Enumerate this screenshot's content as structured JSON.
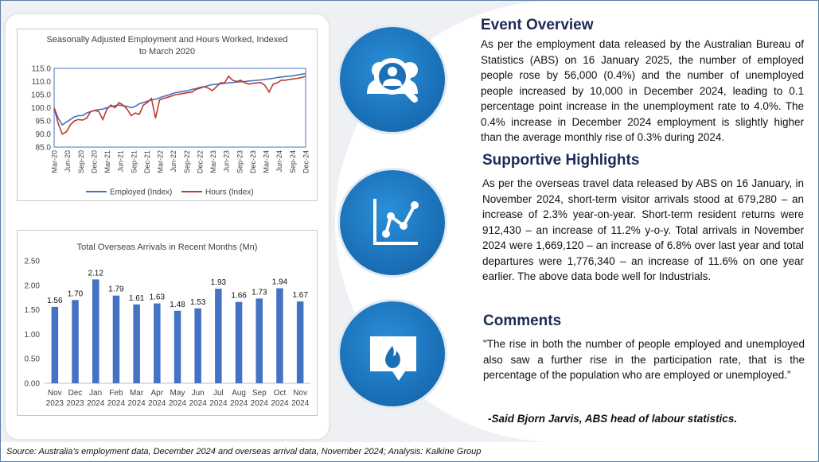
{
  "chart_data": [
    {
      "type": "line",
      "title": "Seasonally Adjusted Employment and Hours Worked, Indexed to March 2020",
      "title_lines": [
        "Seasonally Adjusted Employment and Hours Worked, Indexed",
        "to March 2020"
      ],
      "ylim": [
        85.0,
        115.0
      ],
      "yticks": [
        "85.0",
        "90.0",
        "95.0",
        "100.0",
        "105.0",
        "110.0",
        "115.0"
      ],
      "xticks": [
        "Mar-20",
        "Jun-20",
        "Sep-20",
        "Dec-20",
        "Mar-21",
        "Jun-21",
        "Sep-21",
        "Dec-21",
        "Mar-22",
        "Jun-22",
        "Sep-22",
        "Dec-22",
        "Mar-23",
        "Jun-23",
        "Sep-23",
        "Dec-23",
        "Mar-24",
        "Jun-24",
        "Sep-24",
        "Dec-24"
      ],
      "legend_position": "bottom",
      "series": [
        {
          "name": "Employed (Index)",
          "color": "#4472c4",
          "values": [
            100.0,
            96.0,
            93.5,
            94.5,
            95.5,
            96.5,
            97.0,
            97.0,
            98.0,
            98.5,
            99.0,
            99.3,
            99.5,
            100.0,
            100.5,
            100.8,
            101.0,
            100.8,
            100.5,
            100.0,
            100.5,
            101.5,
            102.0,
            102.5,
            103.0,
            103.2,
            103.8,
            104.3,
            104.8,
            105.3,
            105.8,
            106.0,
            106.3,
            106.5,
            107.0,
            107.3,
            107.8,
            108.0,
            108.5,
            108.8,
            109.0,
            109.1,
            109.3,
            109.5,
            109.6,
            109.8,
            109.9,
            110.0,
            110.2,
            110.3,
            110.5,
            110.6,
            110.8,
            111.0,
            111.2,
            111.5,
            111.7,
            111.9,
            112.0,
            112.2,
            112.5,
            112.8,
            113.0
          ]
        },
        {
          "name": "Hours (Index)",
          "color": "#c0392b",
          "values": [
            100.0,
            94.0,
            90.0,
            90.8,
            93.5,
            95.0,
            95.5,
            95.3,
            96.0,
            98.5,
            99.0,
            98.5,
            95.5,
            99.5,
            101.0,
            100.0,
            102.0,
            101.0,
            99.5,
            97.0,
            98.0,
            97.5,
            101.0,
            102.0,
            103.5,
            96.0,
            103.0,
            103.5,
            104.0,
            104.5,
            105.0,
            105.2,
            105.5,
            105.8,
            106.0,
            107.0,
            107.5,
            108.0,
            107.5,
            106.5,
            108.0,
            109.5,
            109.5,
            112.0,
            110.5,
            110.0,
            110.5,
            109.5,
            109.0,
            109.3,
            109.5,
            109.6,
            108.5,
            106.0,
            109.0,
            109.5,
            110.5,
            110.5,
            110.8,
            111.0,
            111.2,
            111.5,
            112.0
          ]
        }
      ]
    },
    {
      "type": "bar",
      "title": "Total Overseas Arrivals in Recent Months (Mn)",
      "ylim": [
        0.0,
        2.5
      ],
      "yticks": [
        "0.00",
        "0.50",
        "1.00",
        "1.50",
        "2.00",
        "2.50"
      ],
      "categories": [
        [
          "Nov",
          "2023"
        ],
        [
          "Dec",
          "2023"
        ],
        [
          "Jan",
          "2024"
        ],
        [
          "Feb",
          "2024"
        ],
        [
          "Mar",
          "2024"
        ],
        [
          "Apr",
          "2024"
        ],
        [
          "May",
          "2024"
        ],
        [
          "Jun",
          "2024"
        ],
        [
          "Jul",
          "2024"
        ],
        [
          "Aug",
          "2024"
        ],
        [
          "Sep",
          "2024"
        ],
        [
          "Oct",
          "2024"
        ],
        [
          "Nov",
          "2024"
        ]
      ],
      "values": [
        1.56,
        1.7,
        2.12,
        1.79,
        1.61,
        1.63,
        1.48,
        1.53,
        1.93,
        1.66,
        1.73,
        1.94,
        1.67
      ],
      "labels": [
        "1.56",
        "1.70",
        "2.12",
        "1.79",
        "1.61",
        "1.63",
        "1.48",
        "1.53",
        "1.93",
        "1.66",
        "1.73",
        "1.94",
        "1.67"
      ],
      "bar_color": "#4472c4",
      "legend_position": "none"
    }
  ],
  "icons": [
    "people-search-icon",
    "line-chart-icon",
    "speech-bubble-flame-icon"
  ],
  "sections": [
    {
      "title": "Event Overview",
      "text": "As per the employment data released by the Australian Bureau of Statistics (ABS) on 16 January 2025, the number of employed people rose by 56,000 (0.4%) and the number of unemployed people increased by 10,000 in December 2024, leading to 0.1 percentage point increase in the unemployment rate to 4.0%. The 0.4% increase in December 2024 employment is slightly higher than the average monthly rise of 0.3% during 2024."
    },
    {
      "title": "Supportive Highlights",
      "text": "As per the overseas travel data released by ABS on 16 January, in November 2024, short-term visitor arrivals stood at 679,280 – an increase of 2.3% year-on-year. Short-term resident returns were 912,430 – an increase of 11.2% y-o-y. Total arrivals in November 2024 were 1,669,120 – an increase of 6.8% over last year and total departures were 1,776,340 – an increase of 11.6% on one year earlier. The above data bode well for Industrials."
    },
    {
      "title": "Comments",
      "text": "\"The rise in both the number of people employed and unemployed also saw a further rise in the participation rate, that is the percentage of the population who are employed or unemployed.”"
    }
  ],
  "quote_author": "-Said Bjorn Jarvis, ABS head of labour statistics.",
  "source": "Source: Australia’s employment data, December 2024 and overseas arrival data, November 2024; Analysis: Kalkine Group"
}
